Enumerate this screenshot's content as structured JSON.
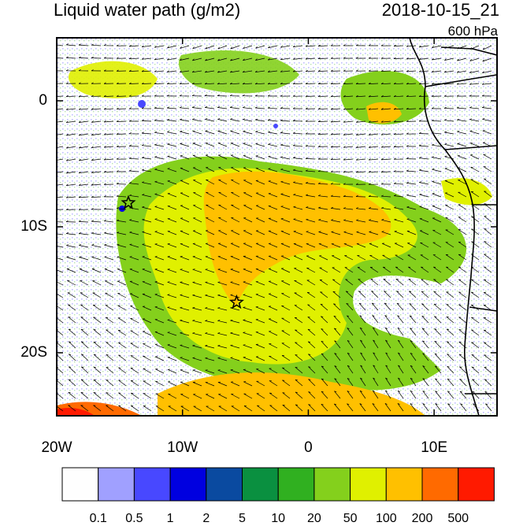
{
  "title": {
    "left": "Liquid water path (g/m2)",
    "right": "2018-10-15_21"
  },
  "level": "600 hPa",
  "lat_ticks": [
    {
      "label": "0",
      "lat": 0
    },
    {
      "label": "10S",
      "lat": -10
    },
    {
      "label": "20S",
      "lat": -20
    }
  ],
  "lon_ticks": [
    {
      "label": "20W",
      "lon": -20
    },
    {
      "label": "10W",
      "lon": -10
    },
    {
      "label": "0",
      "lon": 0
    },
    {
      "label": "10E",
      "lon": 10
    }
  ],
  "domain": {
    "lon_range": [
      -20,
      15
    ],
    "lat_range": [
      -25,
      5
    ]
  },
  "stars": [
    {
      "lon": -14.3,
      "lat": -8.1
    },
    {
      "lon": -5.7,
      "lat": -16.0
    }
  ],
  "colorbar": {
    "labels": [
      "0.1",
      "0.5",
      "1",
      "2",
      "5",
      "10",
      "20",
      "50",
      "100",
      "200",
      "500"
    ],
    "colors": [
      "#fefefe",
      "#a0a0ff",
      "#4848ff",
      "#0000e0",
      "#0a4aa0",
      "#0a9040",
      "#30b020",
      "#84d01c",
      "#e0f000",
      "#ffc000",
      "#ff6a00",
      "#ff1a00"
    ]
  },
  "colors": {
    "land_outline": "#000000",
    "background": "#ffffff"
  },
  "wind_vectors": "arrows"
}
